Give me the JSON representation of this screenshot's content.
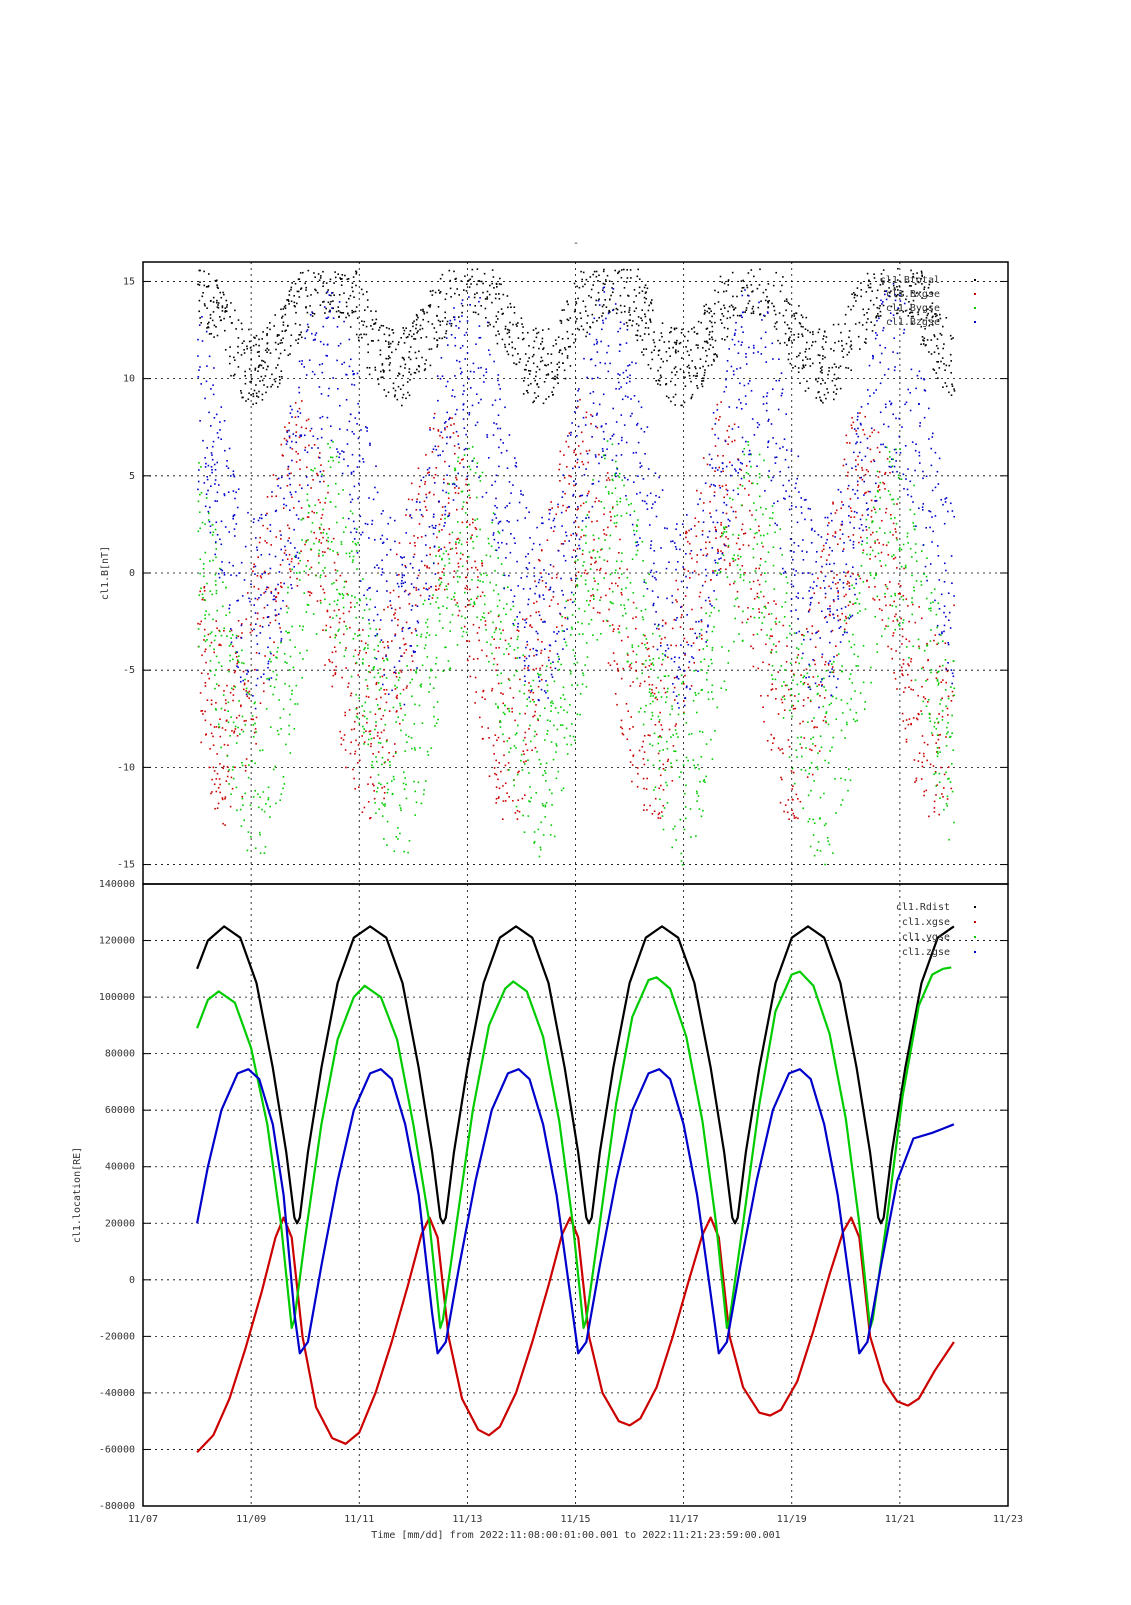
{
  "page": {
    "top_mark": "-",
    "footer_text": "Time [mm/dd]  from 2022:11:08:00:01:00.001  to  2022:11:21:23:59:00.001"
  },
  "colors": {
    "black": "#000000",
    "red": "#cc0000",
    "green": "#00cc00",
    "blue": "#0000cc"
  },
  "x_axis": {
    "range": [
      0,
      16
    ],
    "day_of_tick0": "11/07",
    "ticks": [
      {
        "value": 0,
        "label": "11/07"
      },
      {
        "value": 2,
        "label": "11/09"
      },
      {
        "value": 4,
        "label": "11/11"
      },
      {
        "value": 6,
        "label": "11/13"
      },
      {
        "value": 8,
        "label": "11/15"
      },
      {
        "value": 10,
        "label": "11/17"
      },
      {
        "value": 12,
        "label": "11/19"
      },
      {
        "value": 14,
        "label": "11/21"
      },
      {
        "value": 16,
        "label": "11/23"
      }
    ]
  },
  "chart_data": [
    {
      "type": "scatter",
      "ylabel": "cl1.B[nT]",
      "ylim": [
        -16,
        16
      ],
      "yticks": [
        -15,
        -10,
        -5,
        0,
        5,
        10,
        15
      ],
      "grid": true,
      "legend_position": "top-right",
      "data_range_days": [
        1.0,
        14.998
      ],
      "series": [
        {
          "name": "cl1.Btotal",
          "color": "#000000",
          "legend_label": "cl1.Btotal",
          "note": "dense scatter near top of panel"
        },
        {
          "name": "cl1.Bx",
          "color": "#cc0000",
          "legend_label": "cl1.Bxgse"
        },
        {
          "name": "cl1.By",
          "color": "#00cc00",
          "legend_label": "cl1.Bygse"
        },
        {
          "name": "cl1.Bz",
          "color": "#0000cc",
          "legend_label": "cl1.Bzgse"
        }
      ]
    },
    {
      "type": "line",
      "ylabel": "cl1.location[RE]",
      "ylim": [
        -80000,
        140000
      ],
      "yticks": [
        -80000,
        -60000,
        -40000,
        -20000,
        0,
        20000,
        40000,
        60000,
        80000,
        100000,
        120000,
        140000
      ],
      "grid": true,
      "legend_position": "top-right",
      "data_range_days": [
        1.0,
        14.998
      ],
      "series": [
        {
          "name": "cl1.Rdist",
          "color": "#000000",
          "points": [
            [
              1.0,
              110000
            ],
            [
              1.2,
              120000
            ],
            [
              1.5,
              125000
            ],
            [
              1.8,
              121000
            ],
            [
              2.1,
              105000
            ],
            [
              2.4,
              75000
            ],
            [
              2.65,
              45000
            ],
            [
              2.8,
              22000
            ],
            [
              2.85,
              20000
            ],
            [
              2.9,
              22000
            ],
            [
              3.05,
              45000
            ],
            [
              3.3,
              75000
            ],
            [
              3.6,
              105000
            ],
            [
              3.9,
              121000
            ],
            [
              4.2,
              125000
            ],
            [
              4.5,
              121000
            ],
            [
              4.8,
              105000
            ],
            [
              5.1,
              75000
            ],
            [
              5.35,
              45000
            ],
            [
              5.5,
              22000
            ],
            [
              5.55,
              20000
            ],
            [
              5.6,
              22000
            ],
            [
              5.75,
              45000
            ],
            [
              6.0,
              75000
            ],
            [
              6.3,
              105000
            ],
            [
              6.6,
              121000
            ],
            [
              6.9,
              125000
            ],
            [
              7.2,
              121000
            ],
            [
              7.5,
              105000
            ],
            [
              7.8,
              75000
            ],
            [
              8.05,
              45000
            ],
            [
              8.2,
              22000
            ],
            [
              8.25,
              20000
            ],
            [
              8.3,
              22000
            ],
            [
              8.45,
              45000
            ],
            [
              8.7,
              75000
            ],
            [
              9.0,
              105000
            ],
            [
              9.3,
              121000
            ],
            [
              9.6,
              125000
            ],
            [
              9.9,
              121000
            ],
            [
              10.2,
              105000
            ],
            [
              10.5,
              75000
            ],
            [
              10.75,
              45000
            ],
            [
              10.9,
              22000
            ],
            [
              10.95,
              20000
            ],
            [
              11.0,
              22000
            ],
            [
              11.15,
              45000
            ],
            [
              11.4,
              75000
            ],
            [
              11.7,
              105000
            ],
            [
              12.0,
              121000
            ],
            [
              12.3,
              125000
            ],
            [
              12.6,
              121000
            ],
            [
              12.9,
              105000
            ],
            [
              13.2,
              75000
            ],
            [
              13.45,
              45000
            ],
            [
              13.6,
              22000
            ],
            [
              13.65,
              20000
            ],
            [
              13.7,
              22000
            ],
            [
              13.85,
              45000
            ],
            [
              14.1,
              75000
            ],
            [
              14.4,
              105000
            ],
            [
              14.7,
              121000
            ],
            [
              15.0,
              125000
            ]
          ]
        },
        {
          "name": "cl1.xgse",
          "color": "#cc0000",
          "points": [
            [
              1.0,
              -61000
            ],
            [
              1.3,
              -55000
            ],
            [
              1.6,
              -42000
            ],
            [
              1.9,
              -24000
            ],
            [
              2.2,
              -4000
            ],
            [
              2.45,
              15000
            ],
            [
              2.6,
              22000
            ],
            [
              2.75,
              15000
            ],
            [
              2.95,
              -20000
            ],
            [
              3.2,
              -45000
            ],
            [
              3.5,
              -56000
            ],
            [
              3.75,
              -58000
            ],
            [
              4.0,
              -54000
            ],
            [
              4.3,
              -40000
            ],
            [
              4.6,
              -22000
            ],
            [
              4.9,
              -2000
            ],
            [
              5.15,
              16000
            ],
            [
              5.3,
              22000
            ],
            [
              5.45,
              15000
            ],
            [
              5.65,
              -20000
            ],
            [
              5.9,
              -42000
            ],
            [
              6.2,
              -53000
            ],
            [
              6.4,
              -55000
            ],
            [
              6.6,
              -52000
            ],
            [
              6.9,
              -40000
            ],
            [
              7.2,
              -22000
            ],
            [
              7.5,
              -2000
            ],
            [
              7.75,
              16000
            ],
            [
              7.9,
              22000
            ],
            [
              8.05,
              15000
            ],
            [
              8.25,
              -20000
            ],
            [
              8.5,
              -40000
            ],
            [
              8.8,
              -50000
            ],
            [
              9.0,
              -51500
            ],
            [
              9.2,
              -49000
            ],
            [
              9.5,
              -38000
            ],
            [
              9.8,
              -20000
            ],
            [
              10.1,
              0
            ],
            [
              10.35,
              16000
            ],
            [
              10.5,
              22000
            ],
            [
              10.65,
              15000
            ],
            [
              10.85,
              -20000
            ],
            [
              11.1,
              -38000
            ],
            [
              11.4,
              -47000
            ],
            [
              11.6,
              -48000
            ],
            [
              11.8,
              -46000
            ],
            [
              12.1,
              -36000
            ],
            [
              12.4,
              -18000
            ],
            [
              12.7,
              2000
            ],
            [
              12.95,
              17000
            ],
            [
              13.1,
              22000
            ],
            [
              13.25,
              15000
            ],
            [
              13.45,
              -20000
            ],
            [
              13.7,
              -36000
            ],
            [
              13.95,
              -43000
            ],
            [
              14.15,
              -44500
            ],
            [
              14.35,
              -42000
            ],
            [
              14.65,
              -32000
            ],
            [
              15.0,
              -22000
            ]
          ]
        },
        {
          "name": "cl1.ygse",
          "color": "#00cc00",
          "points": [
            [
              1.0,
              89000
            ],
            [
              1.2,
              99000
            ],
            [
              1.4,
              102000
            ],
            [
              1.7,
              98000
            ],
            [
              2.0,
              82000
            ],
            [
              2.3,
              55000
            ],
            [
              2.55,
              20000
            ],
            [
              2.75,
              -17000
            ],
            [
              2.8,
              -14000
            ],
            [
              3.0,
              15000
            ],
            [
              3.3,
              55000
            ],
            [
              3.6,
              85000
            ],
            [
              3.9,
              100000
            ],
            [
              4.1,
              104000
            ],
            [
              4.4,
              100000
            ],
            [
              4.7,
              85000
            ],
            [
              5.0,
              55000
            ],
            [
              5.3,
              20000
            ],
            [
              5.5,
              -17000
            ],
            [
              5.55,
              -14000
            ],
            [
              5.8,
              20000
            ],
            [
              6.1,
              60000
            ],
            [
              6.4,
              90000
            ],
            [
              6.7,
              103000
            ],
            [
              6.85,
              105500
            ],
            [
              7.1,
              102000
            ],
            [
              7.4,
              86000
            ],
            [
              7.7,
              56000
            ],
            [
              7.95,
              20000
            ],
            [
              8.15,
              -17000
            ],
            [
              8.2,
              -14000
            ],
            [
              8.45,
              20000
            ],
            [
              8.75,
              62000
            ],
            [
              9.05,
              93000
            ],
            [
              9.35,
              106000
            ],
            [
              9.5,
              107000
            ],
            [
              9.75,
              103000
            ],
            [
              10.05,
              86000
            ],
            [
              10.35,
              56000
            ],
            [
              10.6,
              20000
            ],
            [
              10.8,
              -17000
            ],
            [
              10.85,
              -14000
            ],
            [
              11.1,
              20000
            ],
            [
              11.4,
              62000
            ],
            [
              11.7,
              95000
            ],
            [
              12.0,
              108000
            ],
            [
              12.15,
              109000
            ],
            [
              12.4,
              104000
            ],
            [
              12.7,
              87000
            ],
            [
              13.0,
              57000
            ],
            [
              13.25,
              20000
            ],
            [
              13.45,
              -17000
            ],
            [
              13.5,
              -14000
            ],
            [
              13.75,
              20000
            ],
            [
              14.05,
              65000
            ],
            [
              14.35,
              97000
            ],
            [
              14.6,
              108000
            ],
            [
              14.8,
              110000
            ],
            [
              14.95,
              110500
            ]
          ]
        },
        {
          "name": "cl1.zgse",
          "color": "#0000cc",
          "points": [
            [
              1.0,
              20000
            ],
            [
              1.2,
              40000
            ],
            [
              1.45,
              60000
            ],
            [
              1.75,
              73000
            ],
            [
              1.95,
              74500
            ],
            [
              2.15,
              71000
            ],
            [
              2.4,
              55000
            ],
            [
              2.6,
              30000
            ],
            [
              2.8,
              -12000
            ],
            [
              2.9,
              -26000
            ],
            [
              3.05,
              -22000
            ],
            [
              3.3,
              5000
            ],
            [
              3.6,
              35000
            ],
            [
              3.9,
              60000
            ],
            [
              4.2,
              73000
            ],
            [
              4.4,
              74500
            ],
            [
              4.6,
              71000
            ],
            [
              4.85,
              55000
            ],
            [
              5.1,
              30000
            ],
            [
              5.35,
              -12000
            ],
            [
              5.45,
              -26000
            ],
            [
              5.6,
              -22000
            ],
            [
              5.85,
              5000
            ],
            [
              6.15,
              35000
            ],
            [
              6.45,
              60000
            ],
            [
              6.75,
              73000
            ],
            [
              6.95,
              74500
            ],
            [
              7.15,
              71000
            ],
            [
              7.4,
              55000
            ],
            [
              7.65,
              30000
            ],
            [
              7.95,
              -12000
            ],
            [
              8.05,
              -26000
            ],
            [
              8.2,
              -22000
            ],
            [
              8.45,
              5000
            ],
            [
              8.75,
              35000
            ],
            [
              9.05,
              60000
            ],
            [
              9.35,
              73000
            ],
            [
              9.55,
              74500
            ],
            [
              9.75,
              71000
            ],
            [
              10.0,
              55000
            ],
            [
              10.25,
              30000
            ],
            [
              10.55,
              -12000
            ],
            [
              10.65,
              -26000
            ],
            [
              10.8,
              -22000
            ],
            [
              11.05,
              5000
            ],
            [
              11.35,
              35000
            ],
            [
              11.65,
              60000
            ],
            [
              11.95,
              73000
            ],
            [
              12.15,
              74500
            ],
            [
              12.35,
              71000
            ],
            [
              12.6,
              55000
            ],
            [
              12.85,
              30000
            ],
            [
              13.15,
              -12000
            ],
            [
              13.25,
              -26000
            ],
            [
              13.4,
              -22000
            ],
            [
              13.65,
              5000
            ],
            [
              13.95,
              35000
            ],
            [
              14.25,
              50000
            ],
            [
              14.6,
              52000
            ],
            [
              14.8,
              53500
            ],
            [
              15.0,
              55000
            ]
          ]
        }
      ],
      "legend": [
        "cl1.Rdist",
        "cl1.xgse",
        "cl1.ygse",
        "cl1.zgse"
      ]
    }
  ]
}
